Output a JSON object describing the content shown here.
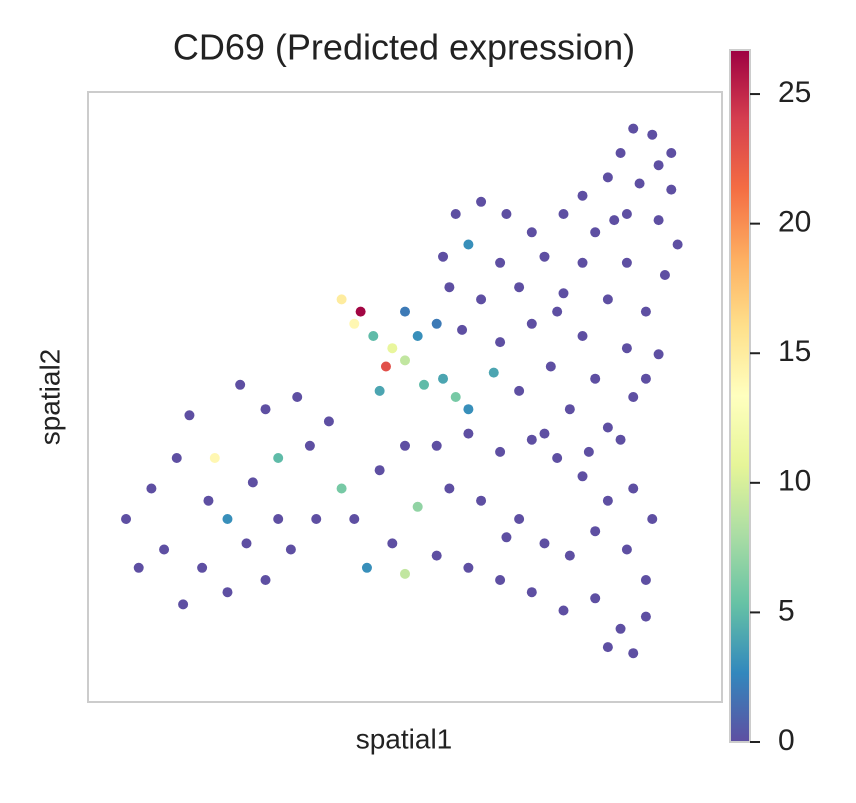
{
  "chart_data": {
    "type": "scatter",
    "title": "CD69 (Predicted expression)",
    "x_label": "spatial1",
    "y_label": "spatial2",
    "xlim": [
      0,
      100
    ],
    "ylim": [
      0,
      100
    ],
    "series": [
      {
        "name": "CD69",
        "x": [
          86,
          89,
          84,
          90,
          82,
          87,
          92,
          78,
          85,
          90,
          75,
          80,
          93,
          70,
          66,
          62,
          58,
          72,
          78,
          85,
          91,
          60,
          65,
          56,
          68,
          75,
          82,
          88,
          62,
          57,
          70,
          78,
          85,
          90,
          65,
          59,
          73,
          80,
          86,
          68,
          76,
          82,
          72,
          79,
          84,
          64,
          88,
          74,
          83,
          92,
          40,
          42,
          43,
          45,
          47,
          48,
          50,
          52,
          55,
          53,
          56,
          58,
          60,
          46,
          50,
          6,
          10,
          14,
          16,
          20,
          24,
          28,
          33,
          38,
          12,
          18,
          22,
          26,
          30,
          35,
          8,
          15,
          22,
          28,
          32,
          36,
          40,
          25,
          19,
          30,
          42,
          46,
          50,
          55,
          60,
          65,
          70,
          74,
          78,
          82,
          86,
          89,
          44,
          48,
          52,
          57,
          62,
          68,
          72,
          76,
          80,
          85,
          88,
          50,
          55,
          60,
          65,
          70,
          75,
          80,
          84,
          86,
          82,
          88,
          66
        ],
        "y": [
          94,
          93,
          90,
          88,
          86,
          85,
          84,
          83,
          80,
          79,
          80,
          77,
          75,
          77,
          80,
          82,
          80,
          73,
          72,
          72,
          70,
          75,
          72,
          73,
          68,
          67,
          66,
          64,
          66,
          68,
          62,
          60,
          58,
          57,
          59,
          61,
          55,
          53,
          50,
          51,
          48,
          45,
          44,
          41,
          43,
          54,
          53,
          64,
          79,
          90,
          66,
          62,
          64,
          60,
          55,
          58,
          56,
          60,
          62,
          52,
          53,
          50,
          48,
          51,
          64,
          30,
          35,
          40,
          47,
          40,
          52,
          48,
          50,
          46,
          25,
          22,
          30,
          36,
          40,
          42,
          22,
          16,
          18,
          20,
          25,
          30,
          35,
          26,
          33,
          30,
          30,
          38,
          42,
          42,
          44,
          41,
          43,
          40,
          37,
          33,
          35,
          30,
          22,
          26,
          32,
          35,
          33,
          30,
          26,
          24,
          28,
          25,
          20,
          21,
          24,
          22,
          20,
          18,
          15,
          17,
          12,
          8,
          9,
          14,
          27
        ],
        "values": [
          0,
          0,
          0,
          0,
          0,
          0,
          0,
          0,
          0,
          0,
          0,
          0,
          0,
          0,
          0,
          0,
          0,
          0,
          0,
          0,
          0,
          3,
          0,
          0,
          0,
          0,
          0,
          0,
          0,
          0,
          0,
          0,
          0,
          0,
          0,
          0,
          0,
          0,
          0,
          0,
          0,
          0,
          0,
          0,
          0,
          4,
          0,
          0,
          0,
          0,
          15,
          14,
          26.5,
          5,
          23,
          11,
          9,
          3,
          2,
          5,
          4,
          6,
          3,
          4,
          2,
          0,
          0,
          0,
          0,
          14,
          0,
          0,
          0,
          0,
          0,
          0,
          3,
          0,
          5,
          0,
          0,
          0,
          0,
          0,
          0,
          0,
          6,
          0,
          0,
          0,
          0,
          0,
          0,
          0,
          0,
          0,
          0,
          0,
          0,
          0,
          0,
          0,
          3,
          0,
          7,
          0,
          0,
          0,
          0,
          0,
          0,
          0,
          0,
          9,
          0,
          0,
          0,
          0,
          0,
          0,
          0,
          0,
          0,
          0,
          0
        ]
      }
    ],
    "clim": [
      0,
      26.7
    ],
    "cticks": [
      0,
      5,
      10,
      15,
      20,
      25
    ],
    "colormap": [
      "#5e4fa2",
      "#3288bd",
      "#66c2a5",
      "#abdda4",
      "#e6f598",
      "#ffffbf",
      "#fee08b",
      "#fdae61",
      "#f46d43",
      "#d53e4f",
      "#9e0142"
    ]
  }
}
